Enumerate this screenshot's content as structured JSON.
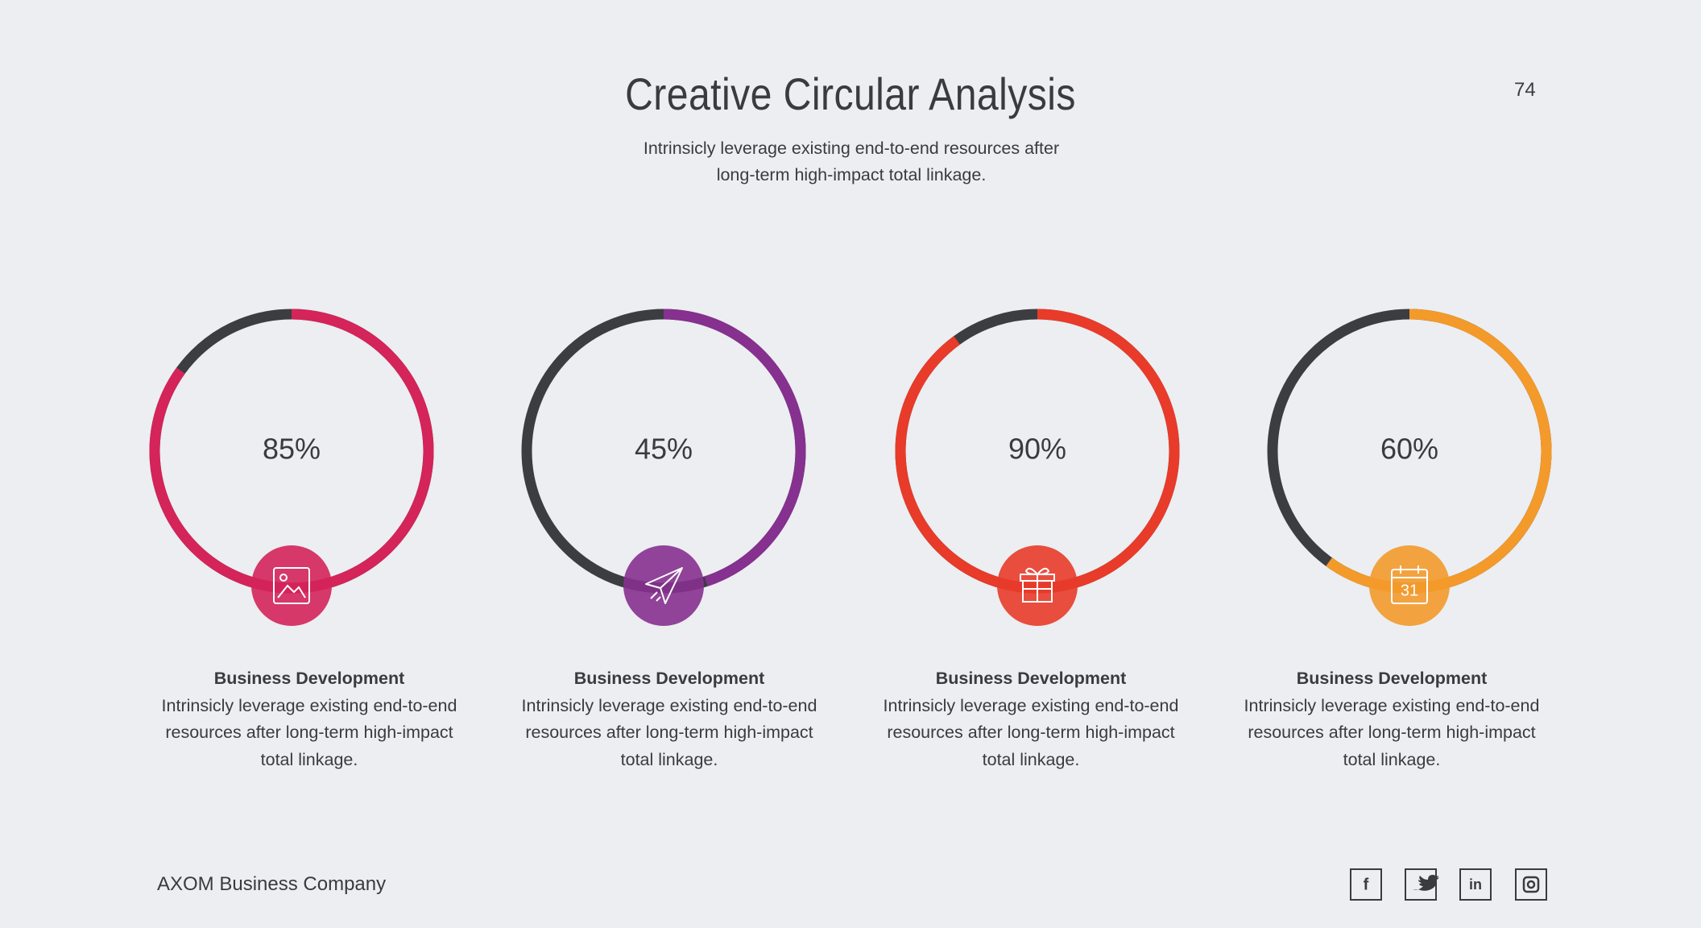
{
  "header": {
    "title": "Creative Circular Analysis",
    "subtitle": "Intrinsicly leverage existing end-to-end resources after long-term high-impact total linkage.",
    "page_number": "74"
  },
  "items": [
    {
      "value": 85,
      "value_label": "85%",
      "color": "#d4245a",
      "title": "Business Development",
      "text": "Intrinsicly leverage existing end-to-end resources after long-term high-impact total linkage."
    },
    {
      "value": 45,
      "value_label": "45%",
      "color": "#86308f",
      "title": "Business Development",
      "text": "Intrinsicly leverage existing end-to-end resources after long-term high-impact total linkage."
    },
    {
      "value": 90,
      "value_label": "90%",
      "color": "#e83b2a",
      "title": "Business Development",
      "text": "Intrinsicly leverage existing end-to-end resources after long-term high-impact total linkage."
    },
    {
      "value": 60,
      "value_label": "60%",
      "color": "#f39a2b",
      "title": "Business Development",
      "text": "Intrinsicly leverage existing end-to-end resources after long-term high-impact total linkage.",
      "calendar_day": "31"
    }
  ],
  "footer": {
    "company": "AXOM Business Company",
    "facebook": "f",
    "linkedin": "in"
  }
}
